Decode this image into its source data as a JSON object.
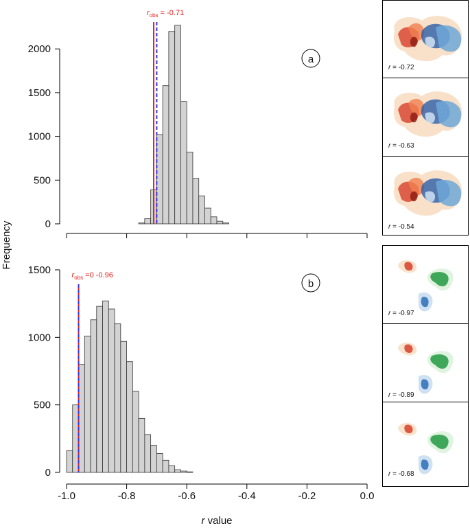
{
  "chart_data": [
    {
      "type": "histogram",
      "panel_label": "a",
      "bins": [
        -1.0,
        -0.98,
        -0.96,
        -0.94,
        -0.92,
        -0.9,
        -0.88,
        -0.86,
        -0.84,
        -0.82,
        -0.8,
        -0.78,
        -0.76,
        -0.74,
        -0.72,
        -0.7,
        -0.68,
        -0.66,
        -0.64,
        -0.62,
        -0.6,
        -0.58,
        -0.56,
        -0.54,
        -0.52,
        -0.5,
        -0.48,
        -0.46,
        -0.44,
        -0.42,
        -0.4,
        -0.38,
        -0.36,
        -0.34,
        -0.32,
        -0.3,
        -0.28,
        -0.26,
        -0.24,
        -0.22,
        -0.2,
        -0.18,
        -0.16,
        -0.14,
        -0.12,
        -0.1,
        -0.08,
        -0.06,
        -0.04,
        -0.02,
        0
      ],
      "values": [
        0,
        0,
        0,
        0,
        0,
        0,
        0,
        0,
        0,
        0,
        0,
        0,
        10,
        60,
        390,
        1020,
        1580,
        2200,
        2270,
        1400,
        820,
        520,
        320,
        180,
        80,
        30,
        10,
        0,
        0,
        0,
        0,
        0,
        0,
        0,
        0,
        0,
        0,
        0,
        0,
        0,
        0,
        0,
        0,
        0,
        0,
        0,
        0,
        0,
        0,
        0
      ],
      "color": "#d3d3d3",
      "xlim": [
        -1,
        0
      ],
      "ylim": [
        0,
        2300
      ],
      "yticks": [
        0,
        500,
        1000,
        1500,
        2000
      ],
      "lines": [
        {
          "value": -0.71,
          "color": "#e8211d",
          "style": "solid"
        },
        {
          "value": -0.7,
          "color": "#3333dd",
          "style": "dashed"
        }
      ],
      "annotation": {
        "symbol": "r",
        "subscript": "obs",
        "text": " = -0.71"
      }
    },
    {
      "type": "histogram",
      "panel_label": "b",
      "bins": [
        -1.0,
        -0.98,
        -0.96,
        -0.94,
        -0.92,
        -0.9,
        -0.88,
        -0.86,
        -0.84,
        -0.82,
        -0.8,
        -0.78,
        -0.76,
        -0.74,
        -0.72,
        -0.7,
        -0.68,
        -0.66,
        -0.64,
        -0.62,
        -0.6,
        -0.58,
        -0.56,
        -0.54,
        -0.52,
        -0.5,
        -0.48,
        -0.46,
        -0.44,
        -0.42,
        -0.4,
        -0.38,
        -0.36,
        -0.34,
        -0.32,
        -0.3,
        -0.28,
        -0.26,
        -0.24,
        -0.22,
        -0.2,
        -0.18,
        -0.16,
        -0.14,
        -0.12,
        -0.1,
        -0.08,
        -0.06,
        -0.04,
        -0.02,
        0
      ],
      "values": [
        160,
        500,
        800,
        1010,
        1130,
        1230,
        1270,
        1210,
        1100,
        970,
        820,
        600,
        400,
        280,
        200,
        140,
        90,
        50,
        20,
        10,
        4,
        0,
        0,
        0,
        0,
        0,
        0,
        0,
        0,
        0,
        0,
        0,
        0,
        0,
        0,
        0,
        0,
        0,
        0,
        0,
        0,
        0,
        0,
        0,
        0,
        0,
        0,
        0,
        0,
        0
      ],
      "color": "#d3d3d3",
      "xlim": [
        -1,
        0
      ],
      "ylim": [
        0,
        1650
      ],
      "yticks": [
        0,
        500,
        1000,
        1500
      ],
      "xticks": [
        {
          "value": -1,
          "label": "-1.0"
        },
        -0.8,
        -0.6,
        -0.4,
        -0.2,
        {
          "value": 0,
          "label": "0.0"
        }
      ],
      "lines": [
        {
          "value": -0.96,
          "color": "#e8211d",
          "style": "solid"
        },
        {
          "value": -0.96,
          "color": "#3333dd",
          "style": "dashed"
        }
      ],
      "annotation": {
        "symbol": "r",
        "subscript": "obs",
        "text": " =0 -0.96"
      }
    }
  ],
  "y_label": "Frequency",
  "x_label": {
    "symbol": "r",
    "text": " value"
  },
  "thumbnails": [
    {
      "symbol": "r",
      "text": " = -0.72"
    },
    {
      "symbol": "r",
      "text": " = -0.63"
    },
    {
      "symbol": "r",
      "text": " = -0.54"
    },
    {
      "symbol": "r",
      "text": " = -0.97"
    },
    {
      "symbol": "r",
      "text": " = -0.89"
    },
    {
      "symbol": "r",
      "text": " = -0.68"
    }
  ]
}
